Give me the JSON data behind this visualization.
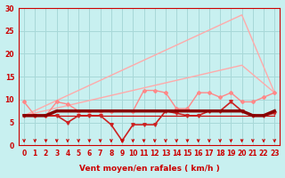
{
  "title": "",
  "xlabel": "Vent moyen/en rafales ( km/h )",
  "ylabel": "",
  "bg_color": "#c8f0f0",
  "grid_color": "#a8d8d8",
  "text_color": "#cc0000",
  "xlim": [
    -0.5,
    23.5
  ],
  "ylim": [
    0,
    30
  ],
  "yticks": [
    0,
    5,
    10,
    15,
    20,
    25,
    30
  ],
  "xticks": [
    0,
    1,
    2,
    3,
    4,
    5,
    6,
    7,
    8,
    9,
    10,
    11,
    12,
    13,
    14,
    15,
    16,
    17,
    18,
    19,
    20,
    21,
    22,
    23
  ],
  "lines": [
    {
      "x": [
        0,
        20,
        23
      ],
      "y": [
        6.5,
        28.5,
        11.5
      ],
      "color": "#ffaaaa",
      "lw": 1.0,
      "marker": null,
      "ms": 0,
      "zorder": 2
    },
    {
      "x": [
        0,
        20,
        23
      ],
      "y": [
        6.5,
        17.5,
        11.5
      ],
      "color": "#ffaaaa",
      "lw": 1.0,
      "marker": null,
      "ms": 0,
      "zorder": 2
    },
    {
      "x": [
        0,
        1,
        2,
        3,
        4,
        5,
        6,
        7,
        8,
        9,
        10,
        11,
        12,
        13,
        14,
        15,
        16,
        17,
        18,
        19,
        20,
        21,
        22,
        23
      ],
      "y": [
        9.5,
        6.5,
        6.5,
        9.5,
        9.0,
        7.5,
        7.5,
        7.5,
        7.5,
        null,
        7.5,
        12.0,
        12.0,
        11.5,
        8.0,
        8.0,
        11.5,
        11.5,
        10.5,
        11.5,
        9.5,
        9.5,
        10.5,
        11.5
      ],
      "color": "#ff8888",
      "lw": 1.0,
      "marker": "D",
      "ms": 2.0,
      "zorder": 3
    },
    {
      "x": [
        0,
        1,
        2,
        3,
        4,
        5,
        6,
        7,
        8,
        9,
        10,
        11,
        12,
        13,
        14,
        15,
        16,
        17,
        18,
        19,
        20,
        21,
        22,
        23
      ],
      "y": [
        6.5,
        6.5,
        6.5,
        6.5,
        5.0,
        6.5,
        6.5,
        6.5,
        4.5,
        1.0,
        4.5,
        4.5,
        4.5,
        7.5,
        7.0,
        6.5,
        6.5,
        7.5,
        7.5,
        9.5,
        7.5,
        6.5,
        6.5,
        7.0
      ],
      "color": "#cc2222",
      "lw": 1.2,
      "marker": "v",
      "ms": 2.5,
      "zorder": 4
    },
    {
      "x": [
        0,
        1,
        2,
        3,
        4,
        5,
        6,
        7,
        8,
        9,
        10,
        11,
        12,
        13,
        14,
        15,
        16,
        17,
        18,
        19,
        20,
        21,
        22,
        23
      ],
      "y": [
        6.5,
        6.5,
        6.5,
        7.5,
        7.5,
        7.5,
        7.5,
        7.5,
        7.5,
        7.5,
        7.5,
        7.5,
        7.5,
        7.5,
        7.5,
        7.5,
        7.5,
        7.5,
        7.5,
        7.5,
        7.5,
        6.5,
        6.5,
        7.5
      ],
      "color": "#880000",
      "lw": 2.5,
      "marker": null,
      "ms": 0,
      "zorder": 5
    },
    {
      "x": [
        0,
        1,
        2,
        3,
        4,
        5,
        6,
        7,
        8,
        9,
        10,
        11,
        12,
        13,
        14,
        15,
        16,
        17,
        18,
        19,
        20,
        21,
        22,
        23
      ],
      "y": [
        6.5,
        6.5,
        6.5,
        7.5,
        7.5,
        7.5,
        7.5,
        7.5,
        7.5,
        7.5,
        7.5,
        7.5,
        7.5,
        7.5,
        7.5,
        7.5,
        7.5,
        7.5,
        7.5,
        7.5,
        7.5,
        6.5,
        6.5,
        7.5
      ],
      "color": "#dd0000",
      "lw": 1.2,
      "marker": null,
      "ms": 0,
      "zorder": 4
    },
    {
      "x": [
        0,
        23
      ],
      "y": [
        6.5,
        6.5
      ],
      "color": "#cc0000",
      "lw": 0.8,
      "marker": null,
      "ms": 0,
      "zorder": 3
    }
  ],
  "arrow_color": "#cc0000"
}
